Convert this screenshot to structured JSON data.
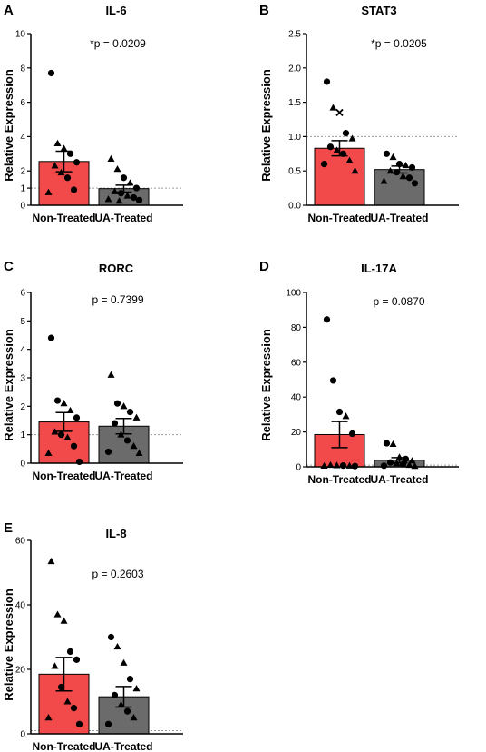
{
  "chart_data": [
    {
      "letter": "A",
      "type": "bar",
      "title": "IL-6",
      "ylabel": "Relative Expression",
      "ylim": [
        0,
        10
      ],
      "yticks": [
        0,
        1,
        2,
        4,
        6,
        8,
        10
      ],
      "reference_line": 1,
      "annotation": "*p = 0.0209",
      "categories": [
        "Non-Treated",
        "UA-Treated"
      ],
      "colors": [
        "#f24a4a",
        "#6b6b6b"
      ],
      "means": [
        2.55,
        0.97
      ],
      "sems": [
        0.6,
        0.2
      ],
      "points": [
        [
          {
            "v": 7.7,
            "m": "c"
          },
          {
            "v": 3.6,
            "m": "t"
          },
          {
            "v": 3.3,
            "m": "t"
          },
          {
            "v": 3.0,
            "m": "c"
          },
          {
            "v": 2.5,
            "m": "c"
          },
          {
            "v": 2.3,
            "m": "t"
          },
          {
            "v": 1.9,
            "m": "t"
          },
          {
            "v": 1.6,
            "m": "c"
          },
          {
            "v": 0.9,
            "m": "c"
          },
          {
            "v": 0.75,
            "m": "t"
          }
        ],
        [
          {
            "v": 2.7,
            "m": "t"
          },
          {
            "v": 2.1,
            "m": "t"
          },
          {
            "v": 1.6,
            "m": "c"
          },
          {
            "v": 1.3,
            "m": "t"
          },
          {
            "v": 1.0,
            "m": "c"
          },
          {
            "v": 0.8,
            "m": "t"
          },
          {
            "v": 0.7,
            "m": "c"
          },
          {
            "v": 0.55,
            "m": "t"
          },
          {
            "v": 0.45,
            "m": "c"
          },
          {
            "v": 0.35,
            "m": "t"
          },
          {
            "v": 0.3,
            "m": "c"
          },
          {
            "v": 0.25,
            "m": "t"
          }
        ]
      ]
    },
    {
      "letter": "B",
      "type": "bar",
      "title": "STAT3",
      "ylabel": "Relative Expression",
      "ylim": [
        0,
        2.5
      ],
      "yticks": [
        0.0,
        0.5,
        1.0,
        1.5,
        2.0,
        2.5
      ],
      "reference_line": 1,
      "annotation": "*p = 0.0205",
      "categories": [
        "Non-Treated",
        "UA-Treated"
      ],
      "colors": [
        "#f24a4a",
        "#6b6b6b"
      ],
      "means": [
        0.83,
        0.52
      ],
      "sems": [
        0.11,
        0.05
      ],
      "points": [
        [
          {
            "v": 1.8,
            "m": "c"
          },
          {
            "v": 1.42,
            "m": "t"
          },
          {
            "v": 1.35,
            "m": "x"
          },
          {
            "v": 1.05,
            "m": "c"
          },
          {
            "v": 0.97,
            "m": "t"
          },
          {
            "v": 0.85,
            "m": "c"
          },
          {
            "v": 0.8,
            "m": "t"
          },
          {
            "v": 0.75,
            "m": "c"
          },
          {
            "v": 0.65,
            "m": "t"
          },
          {
            "v": 0.6,
            "m": "c"
          },
          {
            "v": 0.5,
            "m": "t"
          }
        ],
        [
          {
            "v": 0.75,
            "m": "c"
          },
          {
            "v": 0.7,
            "m": "t"
          },
          {
            "v": 0.6,
            "m": "c"
          },
          {
            "v": 0.58,
            "m": "t"
          },
          {
            "v": 0.55,
            "m": "c"
          },
          {
            "v": 0.5,
            "m": "t"
          },
          {
            "v": 0.48,
            "m": "c"
          },
          {
            "v": 0.42,
            "m": "t"
          },
          {
            "v": 0.4,
            "m": "c"
          },
          {
            "v": 0.35,
            "m": "t"
          },
          {
            "v": 0.32,
            "m": "c"
          }
        ]
      ]
    },
    {
      "letter": "C",
      "type": "bar",
      "title": "RORC",
      "ylabel": "Relative Expression",
      "ylim": [
        0,
        6
      ],
      "yticks": [
        0,
        1,
        2,
        3,
        4,
        5,
        6
      ],
      "reference_line": 1,
      "annotation": "p = 0.7399",
      "categories": [
        "Non-Treated",
        "UA-Treated"
      ],
      "colors": [
        "#f24a4a",
        "#6b6b6b"
      ],
      "means": [
        1.45,
        1.3
      ],
      "sems": [
        0.33,
        0.27
      ],
      "points": [
        [
          {
            "v": 4.4,
            "m": "c"
          },
          {
            "v": 2.2,
            "m": "c"
          },
          {
            "v": 2.1,
            "m": "t"
          },
          {
            "v": 1.85,
            "m": "t"
          },
          {
            "v": 1.6,
            "m": "c"
          },
          {
            "v": 1.1,
            "m": "t"
          },
          {
            "v": 1.0,
            "m": "c"
          },
          {
            "v": 0.9,
            "m": "t"
          },
          {
            "v": 0.6,
            "m": "c"
          },
          {
            "v": 0.35,
            "m": "t"
          },
          {
            "v": 0.05,
            "m": "c"
          }
        ],
        [
          {
            "v": 3.1,
            "m": "t"
          },
          {
            "v": 2.1,
            "m": "c"
          },
          {
            "v": 2.0,
            "m": "t"
          },
          {
            "v": 1.8,
            "m": "c"
          },
          {
            "v": 1.6,
            "m": "t"
          },
          {
            "v": 1.4,
            "m": "c"
          },
          {
            "v": 1.0,
            "m": "t"
          },
          {
            "v": 0.8,
            "m": "c"
          },
          {
            "v": 0.6,
            "m": "t"
          },
          {
            "v": 0.4,
            "m": "c"
          },
          {
            "v": 0.35,
            "m": "t"
          }
        ]
      ]
    },
    {
      "letter": "D",
      "type": "bar",
      "title": "IL-17A",
      "ylabel": "Relative Expression",
      "ylim": [
        0,
        100
      ],
      "yticks": [
        0,
        20,
        40,
        60,
        80,
        100
      ],
      "reference_line": 1,
      "annotation": "p = 0.0870",
      "categories": [
        "Non-Treated",
        "UA-Treated"
      ],
      "colors": [
        "#f24a4a",
        "#6b6b6b"
      ],
      "means": [
        18.5,
        3.8
      ],
      "sems": [
        7.5,
        1.5
      ],
      "points": [
        [
          {
            "v": 84.5,
            "m": "c"
          },
          {
            "v": 49.5,
            "m": "c"
          },
          {
            "v": 31.5,
            "m": "c"
          },
          {
            "v": 29.0,
            "m": "t"
          },
          {
            "v": 19.0,
            "m": "c"
          },
          {
            "v": 1.0,
            "m": "t"
          },
          {
            "v": 0.8,
            "m": "t"
          },
          {
            "v": 0.7,
            "m": "c"
          },
          {
            "v": 0.6,
            "m": "t"
          },
          {
            "v": 0.5,
            "m": "t"
          },
          {
            "v": 0.4,
            "m": "c"
          }
        ],
        [
          {
            "v": 13.5,
            "m": "c"
          },
          {
            "v": 13.0,
            "m": "t"
          },
          {
            "v": 5.5,
            "m": "t"
          },
          {
            "v": 4.5,
            "m": "c"
          },
          {
            "v": 3.5,
            "m": "t"
          },
          {
            "v": 2.5,
            "m": "c"
          },
          {
            "v": 2.0,
            "m": "t"
          },
          {
            "v": 1.5,
            "m": "c"
          },
          {
            "v": 1.0,
            "m": "t"
          },
          {
            "v": 0.6,
            "m": "c"
          },
          {
            "v": 0.4,
            "m": "t"
          }
        ]
      ]
    },
    {
      "letter": "E",
      "type": "bar",
      "title": "IL-8",
      "ylabel": "Relative Expression",
      "ylim": [
        0,
        60
      ],
      "yticks": [
        0,
        20,
        40,
        60
      ],
      "reference_line": 1,
      "annotation": "p = 0.2603",
      "categories": [
        "Non-Treated",
        "UA-Treated"
      ],
      "colors": [
        "#f24a4a",
        "#6b6b6b"
      ],
      "means": [
        18.5,
        11.5
      ],
      "sems": [
        5.2,
        3.2
      ],
      "points": [
        [
          {
            "v": 53.5,
            "m": "t"
          },
          {
            "v": 37.0,
            "m": "t"
          },
          {
            "v": 35.0,
            "m": "t"
          },
          {
            "v": 25.5,
            "m": "c"
          },
          {
            "v": 23.0,
            "m": "c"
          },
          {
            "v": 21.0,
            "m": "t"
          },
          {
            "v": 14.5,
            "m": "c"
          },
          {
            "v": 10.0,
            "m": "t"
          },
          {
            "v": 8.0,
            "m": "c"
          },
          {
            "v": 5.0,
            "m": "t"
          },
          {
            "v": 3.0,
            "m": "c"
          }
        ],
        [
          {
            "v": 30.0,
            "m": "c"
          },
          {
            "v": 27.0,
            "m": "t"
          },
          {
            "v": 22.0,
            "m": "t"
          },
          {
            "v": 17.0,
            "m": "c"
          },
          {
            "v": 14.0,
            "m": "t"
          },
          {
            "v": 12.0,
            "m": "c"
          },
          {
            "v": 9.0,
            "m": "t"
          },
          {
            "v": 7.0,
            "m": "c"
          },
          {
            "v": 5.0,
            "m": "t"
          },
          {
            "v": 3.0,
            "m": "c"
          }
        ]
      ]
    }
  ]
}
